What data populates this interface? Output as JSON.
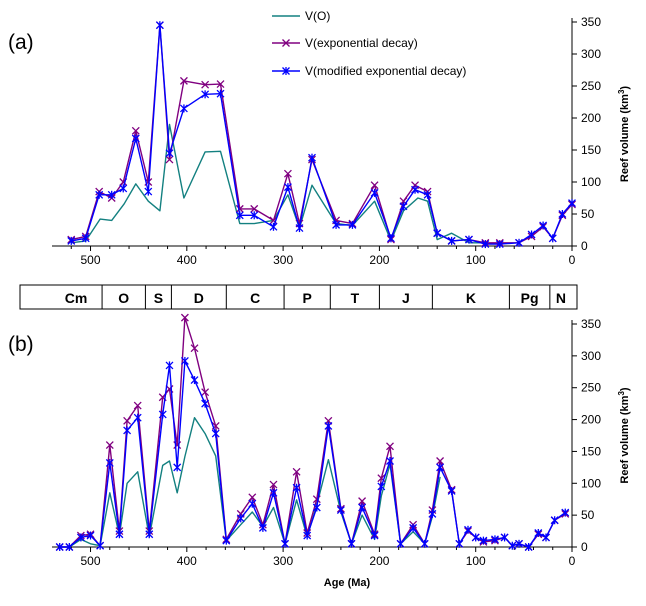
{
  "chart_data": [
    {
      "panel": "(a)",
      "type": "line",
      "xlabel": "",
      "ylabel": "Reef volume (km3)",
      "xlim": [
        540,
        0
      ],
      "ylim": [
        0,
        350
      ],
      "xticks": [
        "500",
        "400",
        "300",
        "200",
        "100",
        "0"
      ],
      "yticks": [
        "0",
        "50",
        "100",
        "150",
        "200",
        "250",
        "300",
        "350"
      ],
      "legend_position": "top-center",
      "series": [
        {
          "name": "V(O)",
          "color": "#138080",
          "marker": "none",
          "x": [
            520,
            505,
            490,
            478,
            465,
            453,
            440,
            428,
            418,
            403,
            381,
            365,
            345,
            330,
            310,
            295,
            283,
            270,
            245,
            228,
            205,
            188,
            175,
            160,
            150,
            140,
            125,
            107,
            90
          ],
          "y": [
            5,
            8,
            42,
            40,
            66,
            97,
            70,
            55,
            190,
            75,
            147,
            148,
            35,
            35,
            40,
            80,
            28,
            95,
            35,
            32,
            70,
            8,
            55,
            75,
            70,
            10,
            20,
            5,
            5
          ]
        },
        {
          "name": "V(exponential decay)",
          "color": "#800080",
          "marker": "x",
          "x": [
            520,
            505,
            491,
            478,
            466,
            453,
            440,
            428,
            418,
            403,
            381,
            365,
            345,
            330,
            310,
            295,
            283,
            270,
            245,
            228,
            205,
            188,
            175,
            163,
            150,
            140,
            125,
            107,
            90,
            75,
            55,
            42,
            30,
            20,
            10,
            0
          ],
          "y": [
            10,
            15,
            85,
            75,
            100,
            180,
            100,
            345,
            135,
            258,
            252,
            253,
            58,
            58,
            40,
            113,
            35,
            135,
            40,
            35,
            95,
            10,
            70,
            95,
            85,
            20,
            8,
            10,
            5,
            5,
            5,
            15,
            30,
            12,
            48,
            65
          ]
        },
        {
          "name": "V(modified exponential decay)",
          "color": "#0000ff",
          "marker": "*",
          "x": [
            520,
            505,
            491,
            478,
            466,
            453,
            440,
            428,
            418,
            403,
            381,
            365,
            345,
            330,
            310,
            295,
            283,
            270,
            245,
            228,
            205,
            188,
            175,
            163,
            150,
            140,
            125,
            107,
            90,
            75,
            55,
            42,
            30,
            20,
            10,
            0
          ],
          "y": [
            8,
            12,
            80,
            80,
            90,
            168,
            85,
            345,
            145,
            215,
            237,
            238,
            48,
            48,
            30,
            92,
            28,
            138,
            33,
            33,
            83,
            12,
            62,
            88,
            80,
            20,
            8,
            10,
            3,
            3,
            5,
            18,
            32,
            12,
            50,
            67
          ]
        }
      ]
    },
    {
      "panel": "(b)",
      "type": "line",
      "xlabel": "Age (Ma)",
      "ylabel": "Reef volume (km3)",
      "xlim": [
        540,
        0
      ],
      "ylim": [
        0,
        350
      ],
      "xticks": [
        "500",
        "400",
        "300",
        "200",
        "100",
        "0"
      ],
      "yticks": [
        "0",
        "50",
        "100",
        "150",
        "200",
        "250",
        "300",
        "350"
      ],
      "series": [
        {
          "name": "V(O)",
          "color": "#138080",
          "marker": "none",
          "x": [
            532,
            522,
            510,
            500,
            490,
            480,
            470,
            462,
            451,
            439,
            425,
            418,
            410,
            402,
            392,
            381,
            370,
            359,
            344,
            332,
            321,
            310,
            298,
            286,
            275,
            265,
            253,
            240,
            229,
            218,
            205,
            198,
            189,
            178,
            165,
            153,
            145,
            137
          ],
          "y": [
            0,
            0,
            12,
            5,
            2,
            85,
            18,
            100,
            118,
            16,
            128,
            135,
            85,
            142,
            203,
            178,
            143,
            10,
            35,
            55,
            32,
            62,
            5,
            74,
            16,
            66,
            137,
            55,
            5,
            50,
            12,
            80,
            130,
            5,
            24,
            5,
            48,
            110
          ]
        },
        {
          "name": "V(exponential decay)",
          "color": "#800080",
          "marker": "x",
          "x": [
            532,
            522,
            510,
            500,
            490,
            480,
            470,
            462,
            451,
            439,
            425,
            418,
            410,
            402,
            392,
            381,
            370,
            359,
            344,
            332,
            321,
            310,
            298,
            286,
            275,
            265,
            253,
            240,
            229,
            218,
            205,
            198,
            189,
            178,
            165,
            153,
            145,
            137,
            125,
            117,
            108,
            100,
            92,
            80,
            70,
            62,
            55,
            45,
            35,
            27,
            18,
            7
          ],
          "y": [
            0,
            0,
            18,
            20,
            2,
            160,
            25,
            198,
            222,
            25,
            235,
            248,
            160,
            360,
            312,
            243,
            190,
            12,
            52,
            78,
            35,
            98,
            5,
            118,
            22,
            75,
            198,
            60,
            5,
            72,
            20,
            108,
            158,
            5,
            35,
            5,
            58,
            135,
            90,
            5,
            25,
            15,
            8,
            10,
            15,
            2,
            5,
            0,
            20,
            15,
            42,
            52
          ]
        },
        {
          "name": "V(modified exponential decay)",
          "color": "#0000ff",
          "marker": "*",
          "x": [
            532,
            522,
            510,
            500,
            490,
            480,
            470,
            462,
            451,
            439,
            425,
            418,
            410,
            402,
            392,
            381,
            370,
            359,
            344,
            332,
            321,
            310,
            298,
            286,
            275,
            265,
            253,
            240,
            229,
            218,
            205,
            198,
            189,
            178,
            165,
            153,
            145,
            137,
            125,
            117,
            108,
            100,
            92,
            80,
            70,
            62,
            55,
            45,
            35,
            27,
            18,
            7
          ],
          "y": [
            0,
            0,
            15,
            18,
            2,
            132,
            20,
            183,
            203,
            20,
            208,
            285,
            125,
            292,
            262,
            225,
            178,
            10,
            45,
            68,
            30,
            85,
            5,
            93,
            18,
            62,
            190,
            58,
            5,
            62,
            18,
            95,
            135,
            5,
            30,
            5,
            52,
            125,
            88,
            5,
            27,
            15,
            10,
            12,
            15,
            2,
            5,
            0,
            22,
            15,
            42,
            54
          ]
        }
      ]
    }
  ],
  "periods": [
    {
      "label": "Cm",
      "start": 542,
      "end": 488
    },
    {
      "label": "O",
      "start": 488,
      "end": 443
    },
    {
      "label": "S",
      "start": 443,
      "end": 416
    },
    {
      "label": "D",
      "start": 416,
      "end": 359
    },
    {
      "label": "C",
      "start": 359,
      "end": 299
    },
    {
      "label": "P",
      "start": 299,
      "end": 251
    },
    {
      "label": "T",
      "start": 251,
      "end": 200
    },
    {
      "label": "J",
      "start": 200,
      "end": 145
    },
    {
      "label": "K",
      "start": 145,
      "end": 65
    },
    {
      "label": "Pg",
      "start": 65,
      "end": 23
    },
    {
      "label": "N",
      "start": 23,
      "end": 0
    }
  ]
}
